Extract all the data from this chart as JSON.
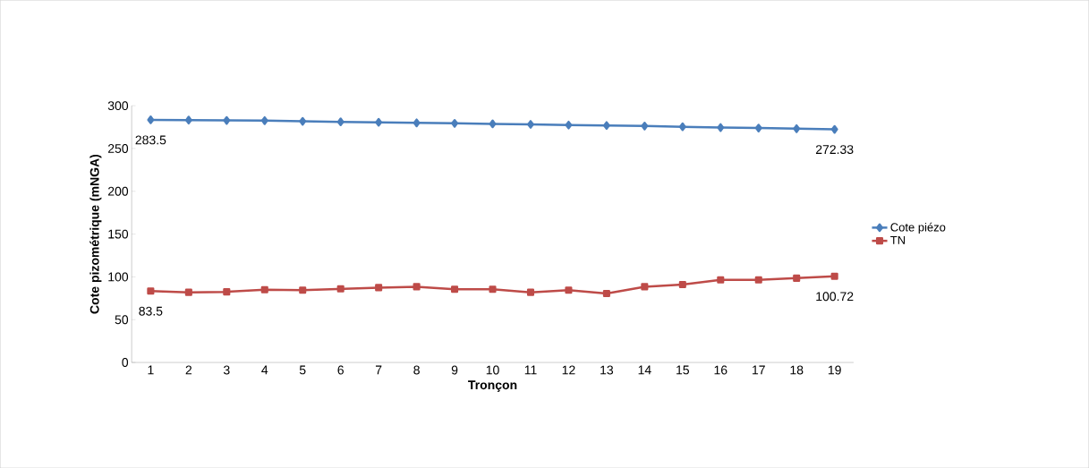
{
  "chart_data": {
    "type": "line",
    "xlabel": "Tronçon",
    "ylabel": "Cote pizométrique (mNGA)",
    "categories": [
      "1",
      "2",
      "3",
      "4",
      "5",
      "6",
      "7",
      "8",
      "9",
      "10",
      "11",
      "12",
      "13",
      "14",
      "15",
      "16",
      "17",
      "18",
      "19"
    ],
    "series": [
      {
        "name": "Cote piézo",
        "color": "#4a7ebb",
        "marker": "diamond",
        "values": [
          283.5,
          283.2,
          282.8,
          282.6,
          281.8,
          281.2,
          280.6,
          280.0,
          279.4,
          278.8,
          278.2,
          277.4,
          276.9,
          276.3,
          275.4,
          274.5,
          273.9,
          273.2,
          272.33
        ],
        "value_labels": [
          "283.5",
          null,
          null,
          null,
          null,
          null,
          null,
          null,
          null,
          null,
          null,
          null,
          null,
          null,
          null,
          null,
          null,
          null,
          "272.33"
        ]
      },
      {
        "name": "TN",
        "color": "#be4b48",
        "marker": "square",
        "values": [
          83.5,
          82,
          82.5,
          85,
          84.5,
          86,
          87.5,
          88.5,
          85.5,
          85.5,
          82,
          84.5,
          80.5,
          88.5,
          91,
          96.5,
          96.5,
          98.5,
          100.72
        ],
        "value_labels": [
          "83.5",
          null,
          null,
          null,
          null,
          null,
          null,
          null,
          null,
          null,
          null,
          null,
          null,
          null,
          null,
          null,
          null,
          null,
          "100.72"
        ]
      }
    ],
    "ylim": [
      0,
      300
    ],
    "yticks": [
      0,
      50,
      100,
      150,
      200,
      250,
      300
    ],
    "grid": false,
    "legend": "right",
    "line_style": "solid"
  }
}
